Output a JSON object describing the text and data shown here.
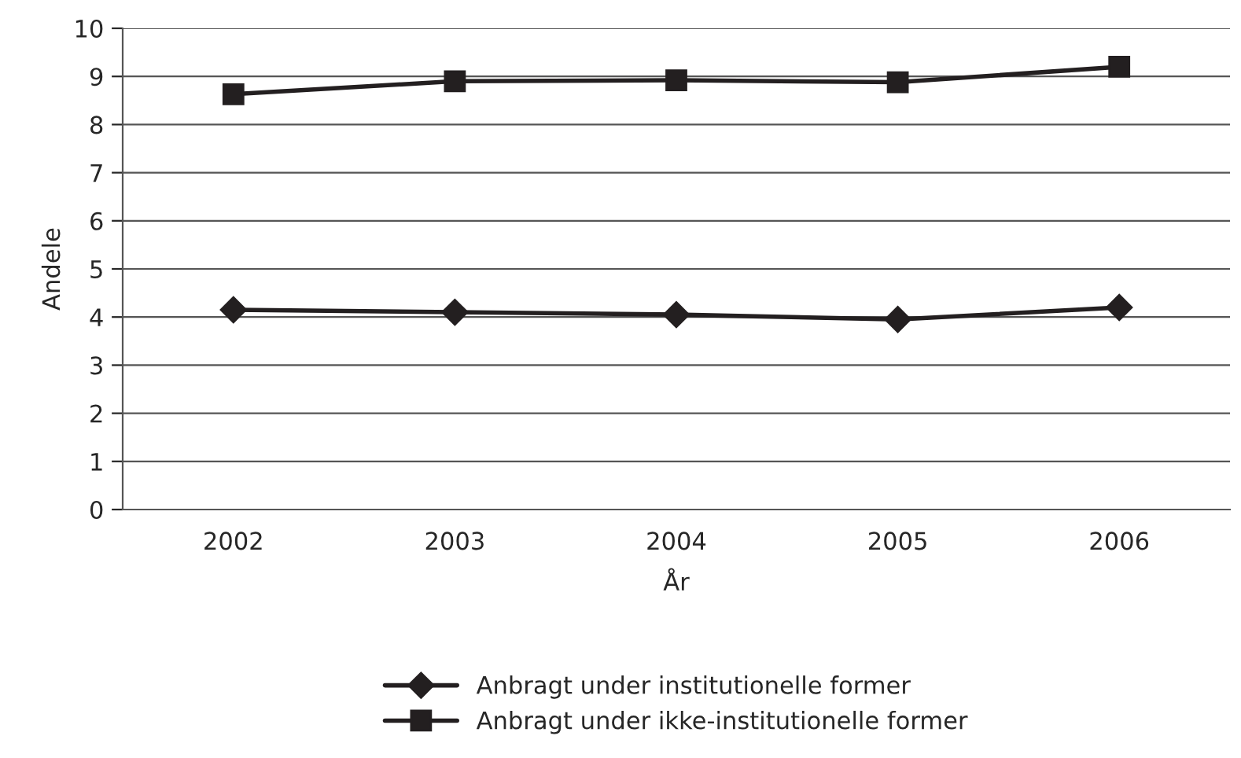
{
  "chart_data": {
    "type": "line",
    "xlabel": "År",
    "ylabel": "Andele",
    "categories": [
      "2002",
      "2003",
      "2004",
      "2005",
      "2006"
    ],
    "series": [
      {
        "name": "Anbragt under institutionelle former",
        "color": "#231f20",
        "marker": "diamond",
        "values": [
          4.15,
          4.1,
          4.05,
          3.95,
          4.2
        ]
      },
      {
        "name": "Anbragt under ikke-institutionelle former",
        "color": "#231f20",
        "marker": "square",
        "values": [
          8.63,
          8.9,
          8.92,
          8.88,
          9.2
        ]
      }
    ],
    "ylim": [
      0,
      10
    ],
    "yticks": [
      0,
      1,
      2,
      3,
      4,
      5,
      6,
      7,
      8,
      9,
      10
    ],
    "grid": "y",
    "legend": "bottom",
    "line_style": "solid"
  }
}
